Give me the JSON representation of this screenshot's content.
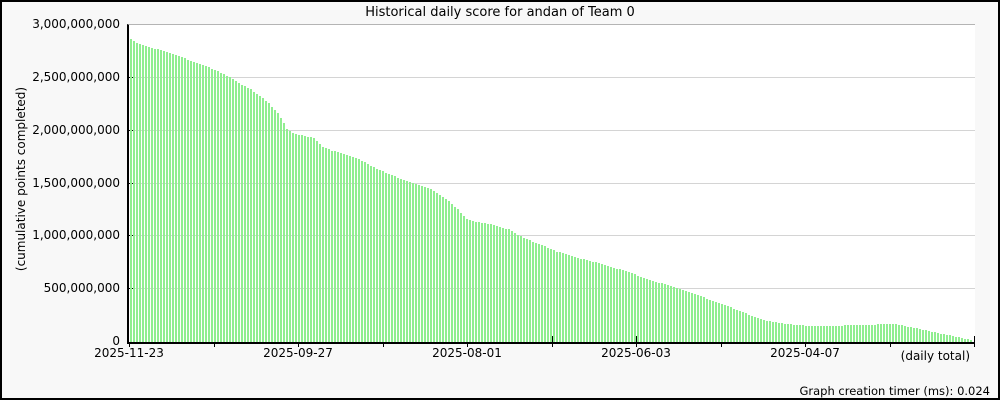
{
  "page": {
    "background": "#f8f8f8",
    "border_color": "#000000"
  },
  "chart": {
    "title": "Historical daily score for andan of Team 0",
    "y_axis_title": "(cumulative points completed)",
    "x_axis_note": "(daily total)",
    "footer_timer": "Graph creation timer (ms): 0.024"
  },
  "chart_data": {
    "type": "bar",
    "title": "Historical daily score for andan of Team 0",
    "ylabel": "(cumulative points completed)",
    "xlabel": "(daily total)",
    "x_tick_labels": [
      "2025-11-23",
      "2025-09-27",
      "2025-08-01",
      "2025-06-03",
      "2025-04-07"
    ],
    "x_tick_count": 11,
    "x_labeled_every_nth_tick": 2,
    "x_direction": "newest date at left, time goes backwards to the right",
    "bar_interval": "1 day per bar",
    "bars_total": 281,
    "ylim_points": [
      0,
      3000000000
    ],
    "y_tick_step_points": 500000000,
    "y_ticks_millions": [
      0,
      500,
      1000,
      1500,
      2000,
      2500,
      3000
    ],
    "y_max_millions": 3000,
    "value_unit": "millions of points (cumulative)",
    "envelope_day_value_millions": [
      [
        0,
        2865
      ],
      [
        2,
        2830
      ],
      [
        5,
        2800
      ],
      [
        8,
        2775
      ],
      [
        11,
        2755
      ],
      [
        14,
        2730
      ],
      [
        17,
        2695
      ],
      [
        20,
        2660
      ],
      [
        23,
        2630
      ],
      [
        26,
        2600
      ],
      [
        29,
        2560
      ],
      [
        32,
        2520
      ],
      [
        34,
        2490
      ],
      [
        37,
        2435
      ],
      [
        40,
        2390
      ],
      [
        43,
        2330
      ],
      [
        46,
        2260
      ],
      [
        49,
        2165
      ],
      [
        52,
        2020
      ],
      [
        54,
        1975
      ],
      [
        58,
        1950
      ],
      [
        61,
        1930
      ],
      [
        64,
        1850
      ],
      [
        67,
        1810
      ],
      [
        70,
        1790
      ],
      [
        74,
        1755
      ],
      [
        78,
        1700
      ],
      [
        82,
        1640
      ],
      [
        86,
        1590
      ],
      [
        90,
        1545
      ],
      [
        94,
        1505
      ],
      [
        97,
        1480
      ],
      [
        100,
        1450
      ],
      [
        103,
        1390
      ],
      [
        106,
        1335
      ],
      [
        109,
        1255
      ],
      [
        112,
        1165
      ],
      [
        115,
        1140
      ],
      [
        119,
        1120
      ],
      [
        123,
        1090
      ],
      [
        126,
        1065
      ],
      [
        130,
        1000
      ],
      [
        134,
        950
      ],
      [
        138,
        905
      ],
      [
        142,
        855
      ],
      [
        146,
        825
      ],
      [
        150,
        790
      ],
      [
        154,
        760
      ],
      [
        158,
        730
      ],
      [
        162,
        695
      ],
      [
        166,
        660
      ],
      [
        170,
        618
      ],
      [
        174,
        580
      ],
      [
        178,
        545
      ],
      [
        182,
        510
      ],
      [
        186,
        470
      ],
      [
        190,
        432
      ],
      [
        194,
        390
      ],
      [
        198,
        350
      ],
      [
        202,
        305
      ],
      [
        206,
        258
      ],
      [
        209,
        225
      ],
      [
        212,
        200
      ],
      [
        215,
        185
      ],
      [
        218,
        173
      ],
      [
        221,
        165
      ],
      [
        224,
        157
      ],
      [
        228,
        150
      ],
      [
        232,
        152
      ],
      [
        236,
        155
      ],
      [
        240,
        158
      ],
      [
        244,
        161
      ],
      [
        248,
        165
      ],
      [
        251,
        170
      ],
      [
        254,
        172
      ],
      [
        256,
        162
      ],
      [
        259,
        145
      ],
      [
        262,
        128
      ],
      [
        265,
        110
      ],
      [
        268,
        92
      ],
      [
        271,
        74
      ],
      [
        274,
        56
      ],
      [
        277,
        38
      ],
      [
        279,
        26
      ],
      [
        280,
        16
      ]
    ],
    "bar_color": "#90EE90",
    "grid_color": "#d4d4d4",
    "axis_color": "#000000",
    "frame_top_color": "#b4b4b4",
    "plot_background": "#ffffff",
    "legend": "none",
    "grid": "horizontal gridlines at every 500,000,000"
  }
}
